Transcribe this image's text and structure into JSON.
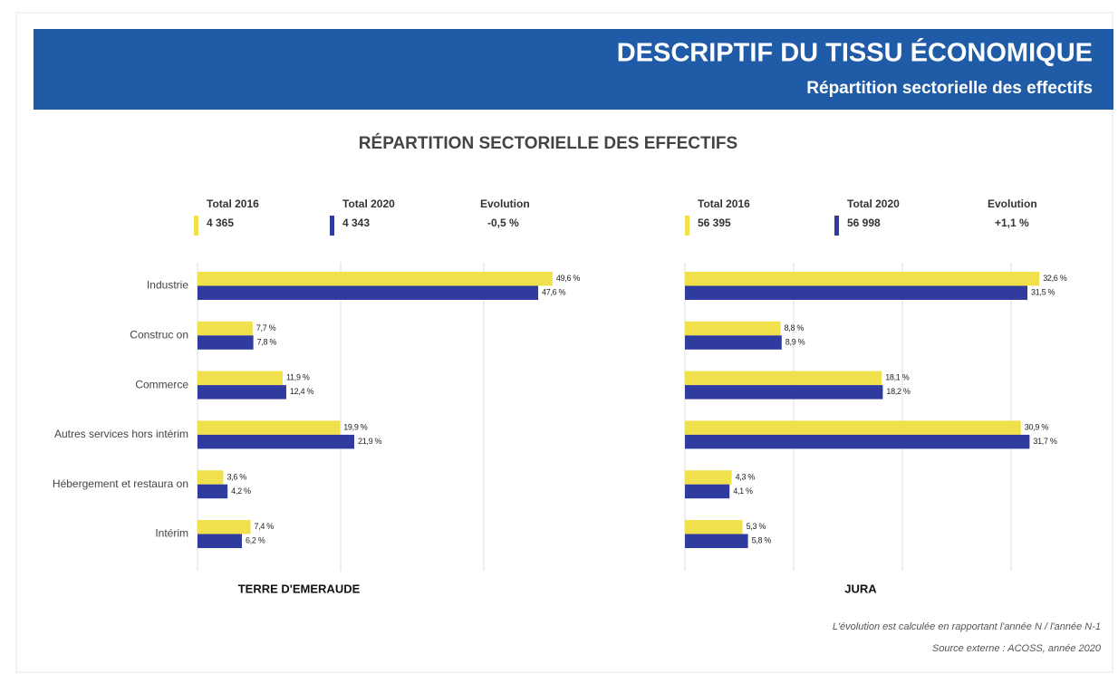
{
  "header": {
    "title": "DESCRIPTIF DU TISSU ÉCONOMIQUE",
    "subtitle": "Répartition sectorielle des effectifs"
  },
  "main_title": "RÉPARTITION SECTORIELLE DES EFFECTIFS",
  "chart_data": [
    {
      "type": "bar",
      "orientation": "horizontal",
      "title": "TERRE D'EMERAUDE",
      "categories": [
        "Industrie",
        "Construc on",
        "Commerce",
        "Autres services hors intérim",
        "Hébergement et restaura on",
        "Intérim"
      ],
      "series": [
        {
          "name": "Total 2016",
          "total": "4 365",
          "color": "#f0e14c",
          "values": [
            49.6,
            7.7,
            11.9,
            19.9,
            3.6,
            7.4
          ],
          "value_labels": [
            "49,6 %",
            "7,7 %",
            "11,9 %",
            "19,9 %",
            "3,6 %",
            "7,4 %"
          ]
        },
        {
          "name": "Total 2020",
          "total": "4 343",
          "color": "#2f3b9e",
          "values": [
            47.6,
            7.8,
            12.4,
            21.9,
            4.2,
            6.2
          ],
          "value_labels": [
            "47,6 %",
            "7,8 %",
            "12,4 %",
            "21,9 %",
            "4,2 %",
            "6,2 %"
          ]
        }
      ],
      "evolution": {
        "label": "Evolution",
        "value": "-0,5 %"
      },
      "xlim": [
        0,
        50
      ],
      "xticks": [
        0,
        20,
        40
      ],
      "grid": true
    },
    {
      "type": "bar",
      "orientation": "horizontal",
      "title": "JURA",
      "series": [
        {
          "name": "Total 2016",
          "total": "56 395",
          "color": "#f0e14c",
          "values": [
            32.6,
            8.8,
            18.1,
            30.9,
            4.3,
            5.3
          ],
          "value_labels": [
            "32,6 %",
            "8,8 %",
            "18,1 %",
            "30,9 %",
            "4,3 %",
            "5,3 %"
          ]
        },
        {
          "name": "Total 2020",
          "total": "56 998",
          "color": "#2f3b9e",
          "values": [
            31.5,
            8.9,
            18.2,
            31.7,
            4.1,
            5.8
          ],
          "value_labels": [
            "31,5 %",
            "8,9 %",
            "18,2 %",
            "31,7 %",
            "4,1 %",
            "5,8 %"
          ]
        }
      ],
      "evolution": {
        "label": "Evolution",
        "value": "+1,1 %"
      },
      "xlim": [
        0,
        33
      ],
      "xticks": [
        0,
        10,
        20,
        30
      ],
      "grid": true
    }
  ],
  "footnotes": [
    "L'évolution est calculée en rapportant l'année N / l'année N-1",
    "Source externe : ACOSS, année 2020"
  ]
}
